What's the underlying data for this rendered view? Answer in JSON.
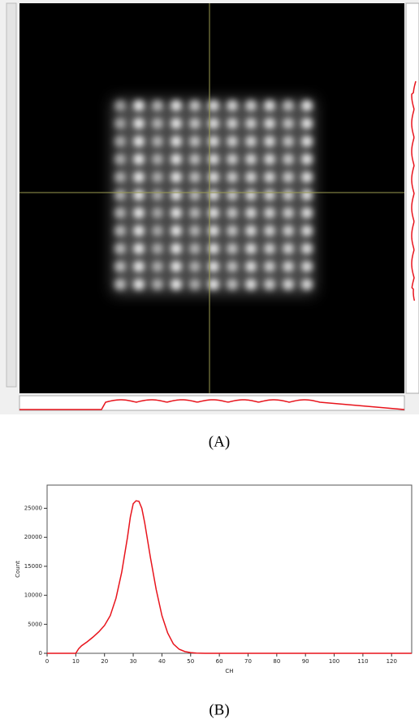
{
  "panel_labels": [
    "(A)",
    "(B)"
  ],
  "chart_data": {
    "type": "line",
    "x_label": "CH",
    "y_label": "Count",
    "color": "#e8141c",
    "x": [
      0,
      5,
      10,
      11,
      12,
      14,
      16,
      18,
      20,
      22,
      24,
      26,
      28,
      29,
      30,
      31,
      32,
      33,
      34,
      35,
      36,
      38,
      40,
      42,
      44,
      46,
      48,
      50,
      52,
      55,
      127
    ],
    "values": [
      0,
      0,
      0,
      800,
      1300,
      2000,
      2800,
      3700,
      4800,
      6500,
      9500,
      14000,
      20000,
      23500,
      25800,
      26300,
      26200,
      25000,
      22500,
      19500,
      16500,
      11000,
      6500,
      3500,
      1600,
      700,
      300,
      120,
      30,
      0,
      0
    ],
    "xlim": [
      0,
      127
    ],
    "xticks": [
      0,
      10,
      20,
      30,
      40,
      50,
      60,
      70,
      80,
      90,
      100,
      110,
      120
    ],
    "ylim": [
      0,
      29000
    ],
    "yticks": [
      0,
      5000,
      10000,
      15000,
      20000,
      25000
    ]
  }
}
